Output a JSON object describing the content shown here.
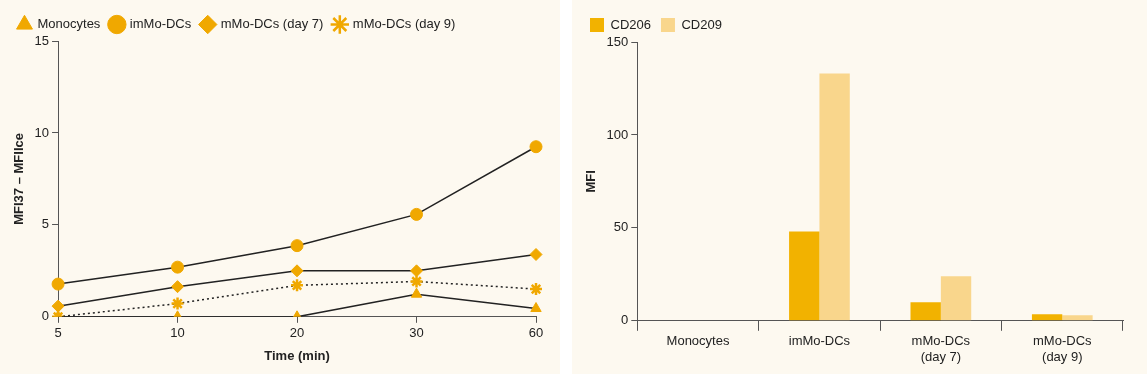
{
  "chart_data": [
    {
      "type": "line",
      "x_label": "Time (min)",
      "y_label": "MFI37 – MFIIce",
      "categories": [
        "5",
        "10",
        "20",
        "30",
        "60"
      ],
      "ylim": [
        0,
        15
      ],
      "yticks": [
        0,
        5,
        10,
        15
      ],
      "grid": false,
      "legend": "top-left",
      "series": [
        {
          "name": "Monocytes",
          "color": "#f0a800",
          "marker": "triangle",
          "line_style": "solid",
          "values": [
            0,
            0,
            0,
            1.23,
            0.45
          ]
        },
        {
          "name": "imMo-DCs",
          "color": "#f0a800",
          "marker": "circle",
          "line_style": "solid",
          "values": [
            1.78,
            2.7,
            3.87,
            5.57,
            9.25
          ]
        },
        {
          "name": "mMo-DCs (day 7)",
          "color": "#f0a800",
          "marker": "diamond",
          "line_style": "solid",
          "values": [
            0.58,
            1.64,
            2.5,
            2.5,
            3.39
          ]
        },
        {
          "name": "mMo-DCs (day 9)",
          "color": "#f0a800",
          "marker": "star",
          "line_style": "dotted",
          "values": [
            0,
            0.72,
            1.71,
            1.92,
            1.51
          ]
        }
      ]
    },
    {
      "type": "bar",
      "y_label": "MFI",
      "categories": [
        "Monocytes",
        "imMo-DCs",
        [
          "mMo-DCs",
          "(day 7)"
        ],
        [
          "mMo-DCs",
          "(day 9)"
        ]
      ],
      "ylim": [
        0,
        150
      ],
      "yticks": [
        0,
        50,
        100,
        150
      ],
      "grid": false,
      "legend": "top-left",
      "series": [
        {
          "name": "CD206",
          "color": "#f2b200",
          "values": [
            0,
            48,
            10,
            3.5
          ]
        },
        {
          "name": "CD209",
          "color": "#f9d68c",
          "values": [
            0,
            133,
            24,
            3
          ]
        }
      ]
    }
  ]
}
